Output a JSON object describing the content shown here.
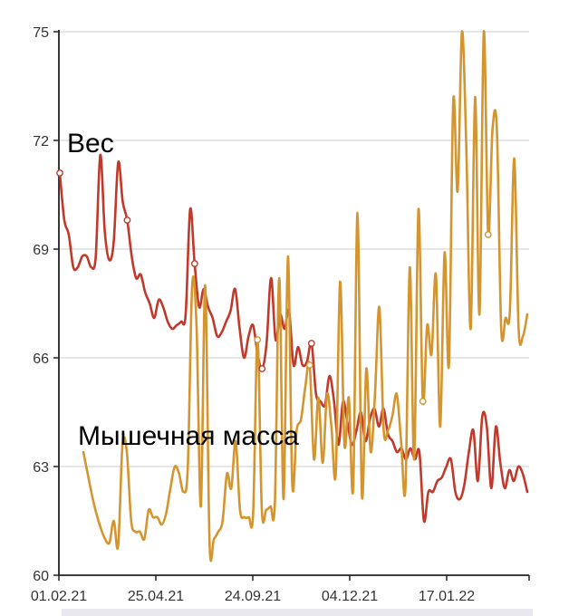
{
  "chart_data": {
    "type": "line",
    "title": "",
    "xlabel": "",
    "ylabel": "",
    "ylim": [
      60,
      75
    ],
    "yticks": [
      60,
      63,
      66,
      69,
      72,
      75
    ],
    "ytick_labels": [
      "60",
      "63",
      "66",
      "69",
      "72",
      "75"
    ],
    "xtick_labels": [
      "01.02.21",
      "25.04.21",
      "24.09.21",
      "04.12.21",
      "17.01.22"
    ],
    "grid": true,
    "series": [
      {
        "name": "Вес",
        "color": "#c0392b",
        "marked_points": [
          0,
          15,
          30,
          45,
          56
        ],
        "values": [
          71.1,
          69.8,
          69.4,
          68.5,
          68.5,
          68.8,
          68.8,
          68.5,
          68.8,
          71.6,
          69.5,
          68.7,
          69.2,
          71.4,
          70.3,
          69.8,
          68.8,
          68.2,
          68.3,
          67.8,
          67.5,
          67.1,
          67.6,
          67.4,
          67.0,
          66.8,
          66.9,
          67.0,
          67.2,
          70.1,
          68.6,
          67.4,
          67.9,
          67.4,
          67.1,
          66.6,
          66.7,
          67.0,
          67.3,
          67.9,
          66.8,
          66.0,
          66.6,
          66.9,
          66.1,
          65.7,
          66.4,
          68.2,
          66.5,
          67.2,
          66.8,
          67.3,
          65.8,
          66.3,
          65.8,
          65.9,
          66.4,
          65.0,
          64.8,
          64.7,
          65.5,
          64.8,
          63.6,
          64.8,
          64.2,
          63.6,
          64.0,
          64.5,
          63.7,
          64.3,
          64.6,
          64.1,
          64.6,
          63.9,
          63.7,
          63.4,
          63.5,
          63.2,
          63.5,
          63.2,
          63.4,
          61.5,
          62.3,
          62.3,
          62.6,
          62.7,
          63.0,
          63.2,
          62.3,
          62.1,
          62.5,
          63.4,
          64.0,
          62.6,
          64.4,
          64.1,
          62.4,
          64.1,
          63.1,
          62.4,
          62.9,
          62.6,
          63.0,
          62.8,
          62.3
        ]
      },
      {
        "name": "Мышечная масса",
        "color": "#d4952f",
        "marked_points": [
          40,
          52,
          78,
          93
        ],
        "values": [
          63.4,
          62.8,
          62.2,
          61.7,
          61.3,
          61.0,
          60.9,
          61.5,
          60.8,
          63.6,
          63.4,
          61.5,
          61.2,
          61.2,
          61.0,
          61.8,
          61.6,
          61.6,
          61.4,
          61.7,
          62.4,
          63.0,
          62.8,
          62.3,
          63.0,
          68.0,
          66.9,
          61.9,
          68.0,
          60.9,
          61.0,
          61.2,
          61.5,
          62.8,
          62.4,
          63.7,
          61.8,
          61.6,
          61.6,
          61.7,
          66.5,
          61.8,
          61.8,
          61.9,
          62.0,
          68.2,
          62.1,
          68.8,
          62.5,
          64.0,
          64.3,
          65.2,
          65.8,
          63.2,
          64.9,
          63.1,
          65.0,
          64.1,
          62.8,
          68.1,
          63.6,
          64.9,
          62.4,
          70.0,
          62.2,
          65.7,
          63.4,
          65.0,
          67.4,
          64.0,
          64.0,
          64.4,
          65.0,
          63.7,
          62.4,
          68.5,
          63.2,
          70.1,
          64.8,
          66.9,
          66.1,
          68.3,
          64.1,
          68.9,
          65.8,
          73.1,
          70.6,
          75.0,
          71.8,
          66.8,
          73.2,
          67.2,
          75.0,
          69.4,
          72.3,
          72.3,
          66.8,
          67.1,
          67.3,
          71.5,
          66.8,
          66.6,
          67.2
        ]
      }
    ]
  }
}
